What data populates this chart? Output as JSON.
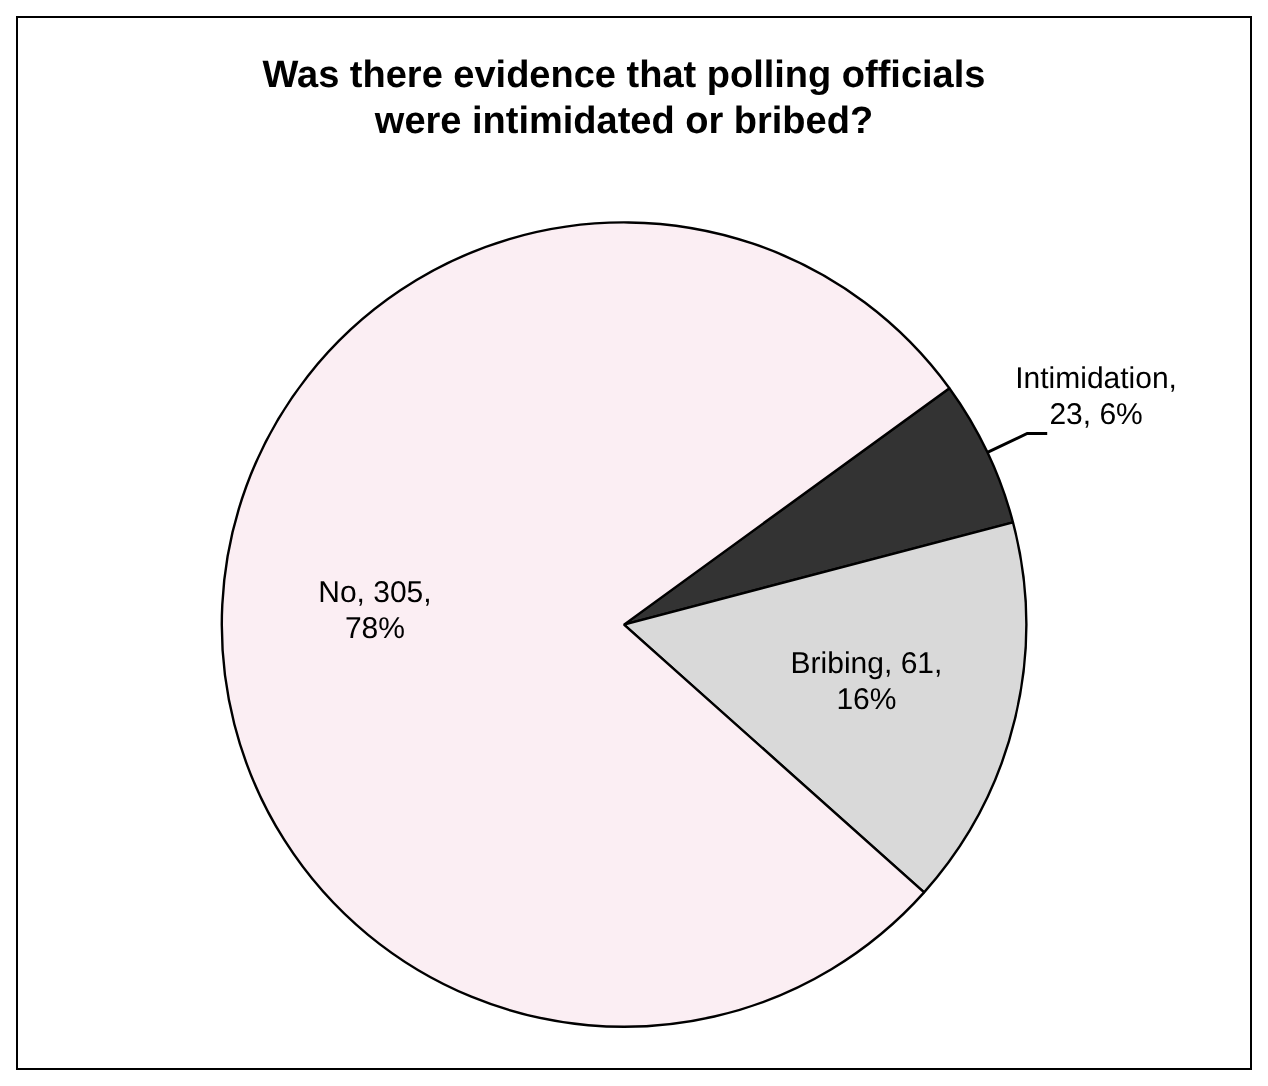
{
  "chart_data": {
    "type": "pie",
    "title": "Was there evidence that polling officials were intimidated or bribed?",
    "categories": [
      "Intimidation",
      "Bribing",
      "No"
    ],
    "values": [
      23,
      61,
      305
    ],
    "colors": [
      "#333333",
      "#d9d9d9",
      "#fbeef3"
    ],
    "value_labels": [
      ", 23, 6%",
      ", 61, 16%",
      ", 305, 78%"
    ],
    "legend": false
  }
}
